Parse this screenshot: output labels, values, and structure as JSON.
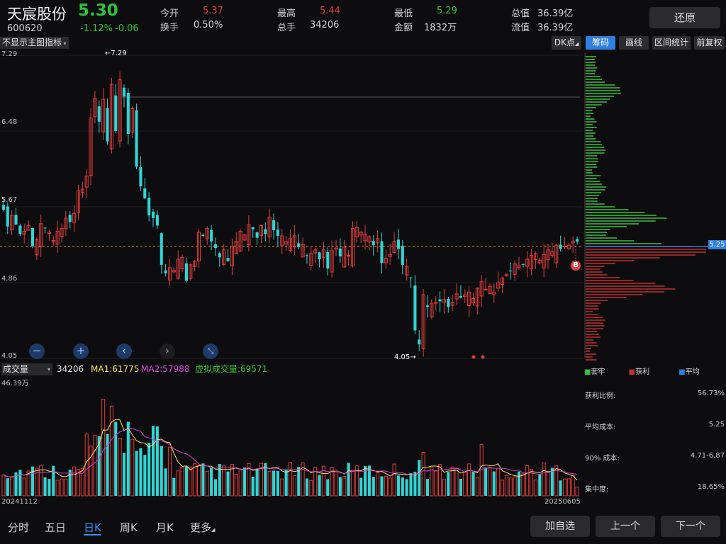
{
  "header": {
    "name": "天宸股份",
    "price": "5.30",
    "code": "600620",
    "chg_pct": "-1.12%",
    "chg": "-0.06",
    "open_label": "今开",
    "open": "5.37",
    "turnover_label": "换手",
    "turnover": "0.50%",
    "high_label": "最高",
    "high": "5.44",
    "vol_label": "总手",
    "vol": "34206",
    "low_label": "最低",
    "low": "5.29",
    "amount_label": "金额",
    "amount": "1832万",
    "mcap_label": "总值",
    "mcap": "36.39亿",
    "float_label": "流值",
    "float": "36.39亿",
    "restore_btn": "还原"
  },
  "toolbar": {
    "indicator_select": "不显示主图指标",
    "dk_label": "DK点",
    "tabs": [
      "筹码",
      "画线",
      "区间统计",
      "前复权"
    ]
  },
  "main_chart": {
    "y_ticks": [
      "7.29",
      "6.48",
      "5.67",
      "4.86",
      "4.05"
    ],
    "max_label": "←7.29",
    "min_label": "4.05→",
    "current_price_tag": "5.25",
    "marker_b": "B"
  },
  "volume_panel": {
    "select": "成交量",
    "vol": "34206",
    "ma1": "MA1:61775",
    "ma2": "MA2:57988",
    "virtual": "虚拟成交量:69571",
    "ymax": "46.39万",
    "start_date": "20241112",
    "end_date": "20250605"
  },
  "chip_panel": {
    "legend": [
      "套牢",
      "获利",
      "平均"
    ],
    "stats": [
      {
        "label": "获利比例:",
        "value": "56.73%"
      },
      {
        "label": "平均成本:",
        "value": "5.25"
      },
      {
        "label": "90% 成本:",
        "value": "4.71-6.87"
      },
      {
        "label": "集中度:",
        "value": "18.65%"
      }
    ]
  },
  "bottom_nav": {
    "tabs": [
      "分时",
      "五日",
      "日K",
      "周K",
      "月K",
      "更多"
    ],
    "active": "日K",
    "buttons": [
      "加自选",
      "上一个",
      "下一个"
    ]
  },
  "colors": {
    "up": "#e33c3c",
    "down": "#2fd5d5",
    "ma1": "#f4e46a",
    "ma2": "#d43bd4",
    "chip_profit": "#c03030",
    "chip_loss": "#3fbf3f"
  },
  "chart_data": {
    "type": "candlestick",
    "ylim": [
      4.05,
      7.29
    ],
    "close": [
      5.64,
      5.46,
      5.58,
      5.48,
      5.38,
      5.41,
      5.47,
      5.25,
      5.32,
      5.49,
      5.44,
      5.4,
      5.31,
      5.41,
      5.44,
      5.55,
      5.51,
      5.6,
      5.84,
      5.86,
      6.0,
      6.62,
      6.83,
      6.58,
      6.82,
      6.37,
      6.98,
      6.48,
      7.03,
      6.85,
      6.45,
      6.72,
      6.1,
      5.89,
      5.76,
      5.58,
      5.55,
      5.47,
      5.05,
      4.96,
      5.02,
      4.99,
      5.11,
      5.13,
      4.88,
      5.05,
      5.09,
      5.4,
      5.36,
      5.44,
      5.3,
      5.23,
      5.13,
      5.21,
      5.09,
      5.25,
      5.3,
      5.41,
      5.37,
      5.48,
      5.43,
      5.34,
      5.47,
      5.38,
      5.56,
      5.42,
      5.36,
      5.36,
      5.3,
      5.33,
      5.36,
      5.24,
      5.27,
      5.15,
      5.17,
      5.21,
      5.11,
      5.21,
      5.01,
      5.2,
      5.23,
      5.14,
      5.24,
      5.15,
      5.44,
      5.45,
      5.4,
      5.38,
      5.35,
      5.26,
      5.33,
      5.07,
      5.12,
      5.16,
      5.3,
      5.22,
      5.05,
      5.03,
      4.91,
      4.35,
      4.2,
      4.73,
      4.6,
      4.64,
      4.65,
      4.66,
      4.68,
      4.6,
      4.65,
      4.74,
      4.7,
      4.73,
      4.76,
      4.69,
      4.8,
      4.87,
      4.79,
      4.82,
      4.76,
      4.86,
      4.91,
      4.95,
      4.98,
      5.06,
      5.04,
      5.05,
      5.11,
      5.15,
      5.17,
      5.1,
      5.16,
      5.21,
      5.19,
      5.26,
      5.22,
      5.25,
      5.26,
      5.3,
      5.3
    ]
  }
}
